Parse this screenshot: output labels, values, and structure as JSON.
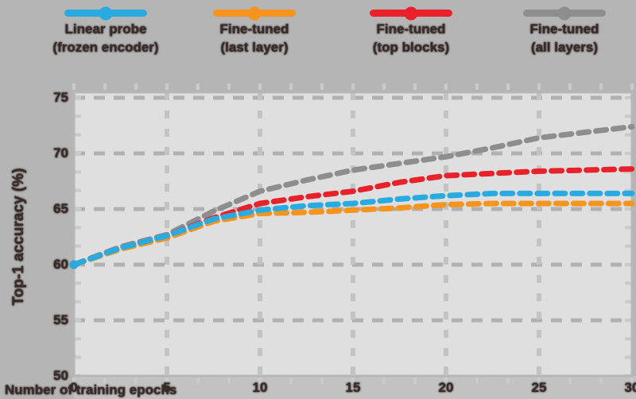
{
  "page": {
    "background": "#b5b5b5",
    "plot_background": "#dfdfdf"
  },
  "colors": {
    "blue": "#29abe2",
    "orange": "#f7941e",
    "red": "#e8212b",
    "gray": "#8e8e8e",
    "text_dark": "#372b28",
    "grid_major": "#b1b1b1",
    "grid_vertical": "#c3c3c3",
    "frame": "#b6b6b6",
    "tick_minor": "#cacaca",
    "bottom_strip": "#c2c2c2"
  },
  "legend": {
    "items": [
      {
        "key": "blue",
        "color": "#29abe2",
        "label_line1": "Linear probe",
        "label_line2": "(frozen encoder)"
      },
      {
        "key": "orange",
        "color": "#f7941e",
        "label_line1": "Fine-tuned",
        "label_line2": "(last layer)"
      },
      {
        "key": "red",
        "color": "#e8212b",
        "label_line1": "Fine-tuned",
        "label_line2": "(top blocks)"
      },
      {
        "key": "gray",
        "color": "#8e8e8e",
        "label_line1": "Fine-tuned",
        "label_line2": "(all layers)"
      }
    ]
  },
  "axes": {
    "x_tick_labels": [
      "0",
      "5",
      "10",
      "15",
      "20",
      "25",
      "30"
    ],
    "y_tick_labels": [
      "50",
      "55",
      "60",
      "65",
      "70",
      "75"
    ]
  },
  "chart_data": {
    "type": "line",
    "title": "",
    "xlabel": "Number of training epochs",
    "ylabel": "Top-1 accuracy (%)",
    "xlim": [
      0,
      30
    ],
    "ylim": [
      50,
      75
    ],
    "x_ticks": [
      0,
      5,
      10,
      15,
      20,
      25,
      30
    ],
    "y_ticks": [
      50,
      55,
      60,
      65,
      70,
      75
    ],
    "grid": "dashed",
    "legend_position": "top",
    "line_style": "dashed",
    "x": [
      0,
      2.5,
      5,
      7.5,
      10,
      12.5,
      15,
      17.5,
      20,
      22.5,
      25,
      27.5,
      30
    ],
    "series": [
      {
        "name": "Linear probe (frozen encoder)",
        "key": "blue",
        "color": "#29abe2",
        "values": [
          60.0,
          61.5,
          62.6,
          64.1,
          64.9,
          65.3,
          65.5,
          65.9,
          66.2,
          66.4,
          66.4,
          66.4,
          66.4
        ]
      },
      {
        "name": "Fine-tuned (last layer)",
        "key": "orange",
        "color": "#f7941e",
        "values": [
          60.0,
          61.4,
          62.4,
          63.9,
          64.6,
          64.7,
          64.9,
          65.1,
          65.4,
          65.5,
          65.5,
          65.5,
          65.5
        ]
      },
      {
        "name": "Fine-tuned (top blocks)",
        "key": "red",
        "color": "#e8212b",
        "values": [
          60.0,
          61.5,
          62.6,
          64.2,
          65.5,
          66.1,
          66.6,
          67.4,
          68.0,
          68.2,
          68.4,
          68.5,
          68.6
        ]
      },
      {
        "name": "Fine-tuned (all layers)",
        "key": "gray",
        "color": "#8e8e8e",
        "values": [
          60.0,
          61.6,
          62.7,
          64.8,
          66.6,
          67.6,
          68.5,
          69.1,
          69.7,
          70.5,
          71.4,
          71.9,
          72.4
        ]
      }
    ]
  }
}
